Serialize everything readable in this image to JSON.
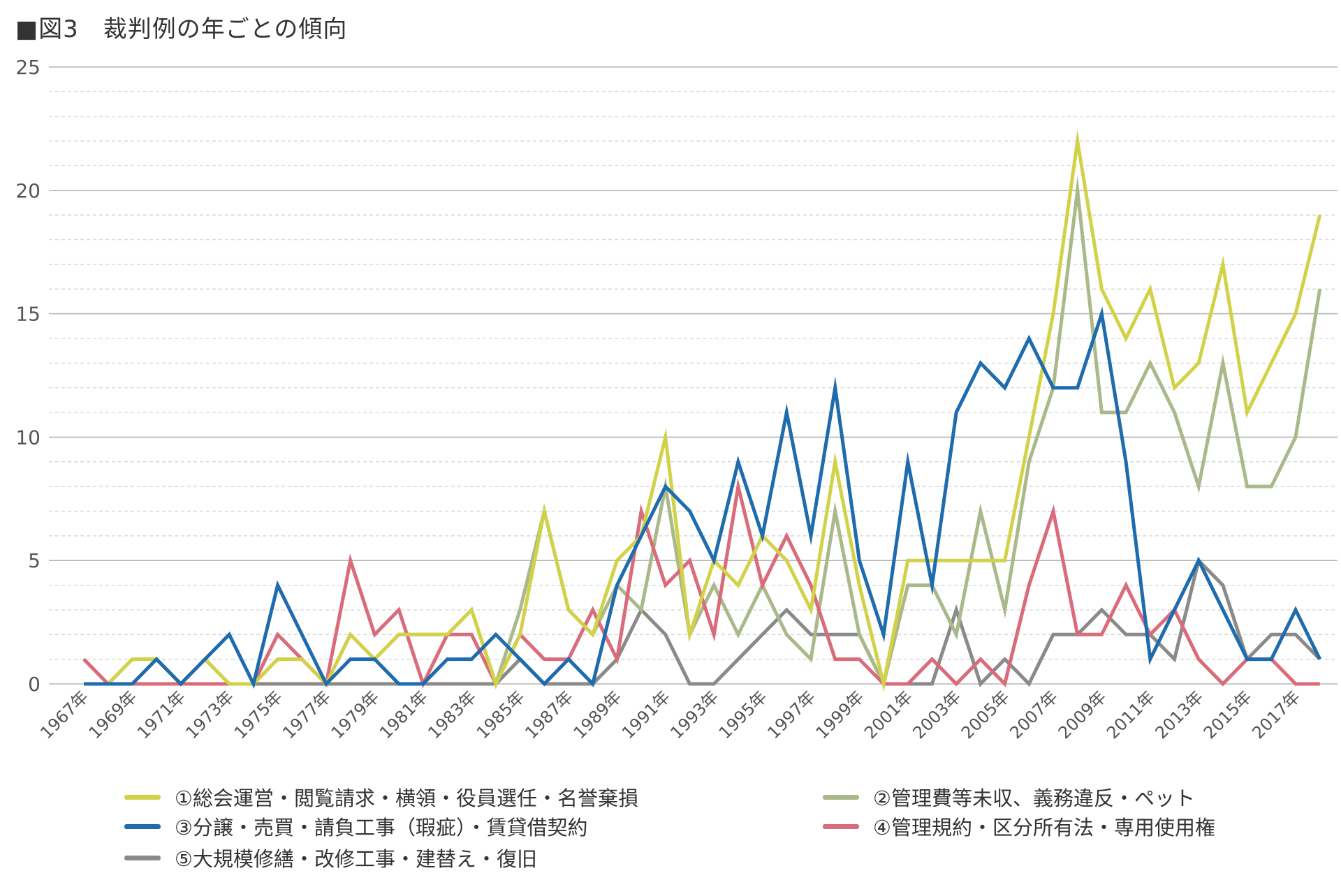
{
  "title": "■図3　裁判例の年ごとの傾向",
  "chart_data": {
    "type": "line",
    "title": "■図3　裁判例の年ごとの傾向",
    "xlabel": "",
    "ylabel": "",
    "ylim": [
      0,
      25
    ],
    "yticks": [
      "0",
      "5",
      "10",
      "15",
      "20",
      "25"
    ],
    "grid": true,
    "legend_position": "bottom",
    "x": [
      "1967年",
      "1968年",
      "1969年",
      "1970年",
      "1971年",
      "1972年",
      "1973年",
      "1974年",
      "1975年",
      "1976年",
      "1977年",
      "1978年",
      "1979年",
      "1980年",
      "1981年",
      "1982年",
      "1983年",
      "1984年",
      "1985年",
      "1986年",
      "1987年",
      "1988年",
      "1989年",
      "1990年",
      "1991年",
      "1992年",
      "1993年",
      "1994年",
      "1995年",
      "1996年",
      "1997年",
      "1998年",
      "1999年",
      "2000年",
      "2001年",
      "2002年",
      "2003年",
      "2004年",
      "2005年",
      "2006年",
      "2007年",
      "2008年",
      "2009年",
      "2010年",
      "2011年",
      "2012年",
      "2013年",
      "2014年",
      "2015年",
      "2016年",
      "2017年",
      "2018年"
    ],
    "xtick_labels": [
      "1967年",
      "1969年",
      "1971年",
      "1973年",
      "1975年",
      "1977年",
      "1979年",
      "1981年",
      "1983年",
      "1985年",
      "1987年",
      "1989年",
      "1991年",
      "1993年",
      "1995年",
      "1997年",
      "1999年",
      "2001年",
      "2003年",
      "2005年",
      "2007年",
      "2009年",
      "2011年",
      "2013年",
      "2015年",
      "2017年"
    ],
    "series": [
      {
        "name": "①総会運営・閲覧請求・横領・役員選任・名誉棄損",
        "color": "#d2d24a",
        "values": [
          0,
          0,
          1,
          1,
          0,
          1,
          0,
          0,
          1,
          1,
          0,
          2,
          1,
          2,
          2,
          2,
          3,
          0,
          2,
          7,
          3,
          2,
          5,
          6,
          10,
          2,
          5,
          4,
          6,
          5,
          3,
          9,
          4,
          0,
          5,
          5,
          5,
          5,
          5,
          10,
          15,
          22,
          16,
          14,
          16,
          12,
          13,
          17,
          11,
          13,
          15,
          19
        ]
      },
      {
        "name": "②管理費等未収、義務違反・ペット",
        "color": "#a9b98a",
        "values": [
          0,
          0,
          1,
          1,
          0,
          1,
          0,
          0,
          1,
          1,
          0,
          2,
          1,
          2,
          2,
          2,
          3,
          0,
          3,
          7,
          3,
          2,
          4,
          3,
          8,
          2,
          4,
          2,
          4,
          2,
          1,
          7,
          2,
          0,
          4,
          4,
          2,
          7,
          3,
          9,
          12,
          20,
          11,
          11,
          13,
          11,
          8,
          13,
          8,
          8,
          10,
          16
        ]
      },
      {
        "name": "③分譲・売買・請負工事（瑕疵）・賃貸借契約",
        "color": "#1e6cad",
        "values": [
          0,
          0,
          0,
          1,
          0,
          1,
          2,
          0,
          4,
          2,
          0,
          1,
          1,
          0,
          0,
          1,
          1,
          2,
          1,
          0,
          1,
          0,
          4,
          6,
          8,
          7,
          5,
          9,
          6,
          11,
          6,
          12,
          5,
          2,
          9,
          4,
          11,
          13,
          12,
          14,
          12,
          12,
          15,
          9,
          1,
          3,
          5,
          3,
          1,
          1,
          3,
          1
        ]
      },
      {
        "name": "④管理規約・区分所有法・専用使用権",
        "color": "#d96b7a",
        "values": [
          1,
          0,
          0,
          0,
          0,
          0,
          0,
          0,
          2,
          1,
          0,
          5,
          2,
          3,
          0,
          2,
          2,
          0,
          2,
          1,
          1,
          3,
          1,
          7,
          4,
          5,
          2,
          8,
          4,
          6,
          4,
          1,
          1,
          0,
          0,
          1,
          0,
          1,
          0,
          4,
          7,
          2,
          2,
          4,
          2,
          3,
          1,
          0,
          1,
          1,
          0,
          0
        ]
      },
      {
        "name": "⑤大規模修繕・改修工事・建替え・復旧",
        "color": "#8a8a8a",
        "values": [
          0,
          0,
          0,
          0,
          0,
          0,
          0,
          0,
          0,
          0,
          0,
          0,
          0,
          0,
          0,
          0,
          0,
          0,
          1,
          0,
          0,
          0,
          1,
          3,
          2,
          0,
          0,
          1,
          2,
          3,
          2,
          2,
          2,
          0,
          0,
          0,
          3,
          0,
          1,
          0,
          2,
          2,
          3,
          2,
          2,
          1,
          5,
          4,
          1,
          2,
          2,
          1
        ]
      }
    ]
  }
}
